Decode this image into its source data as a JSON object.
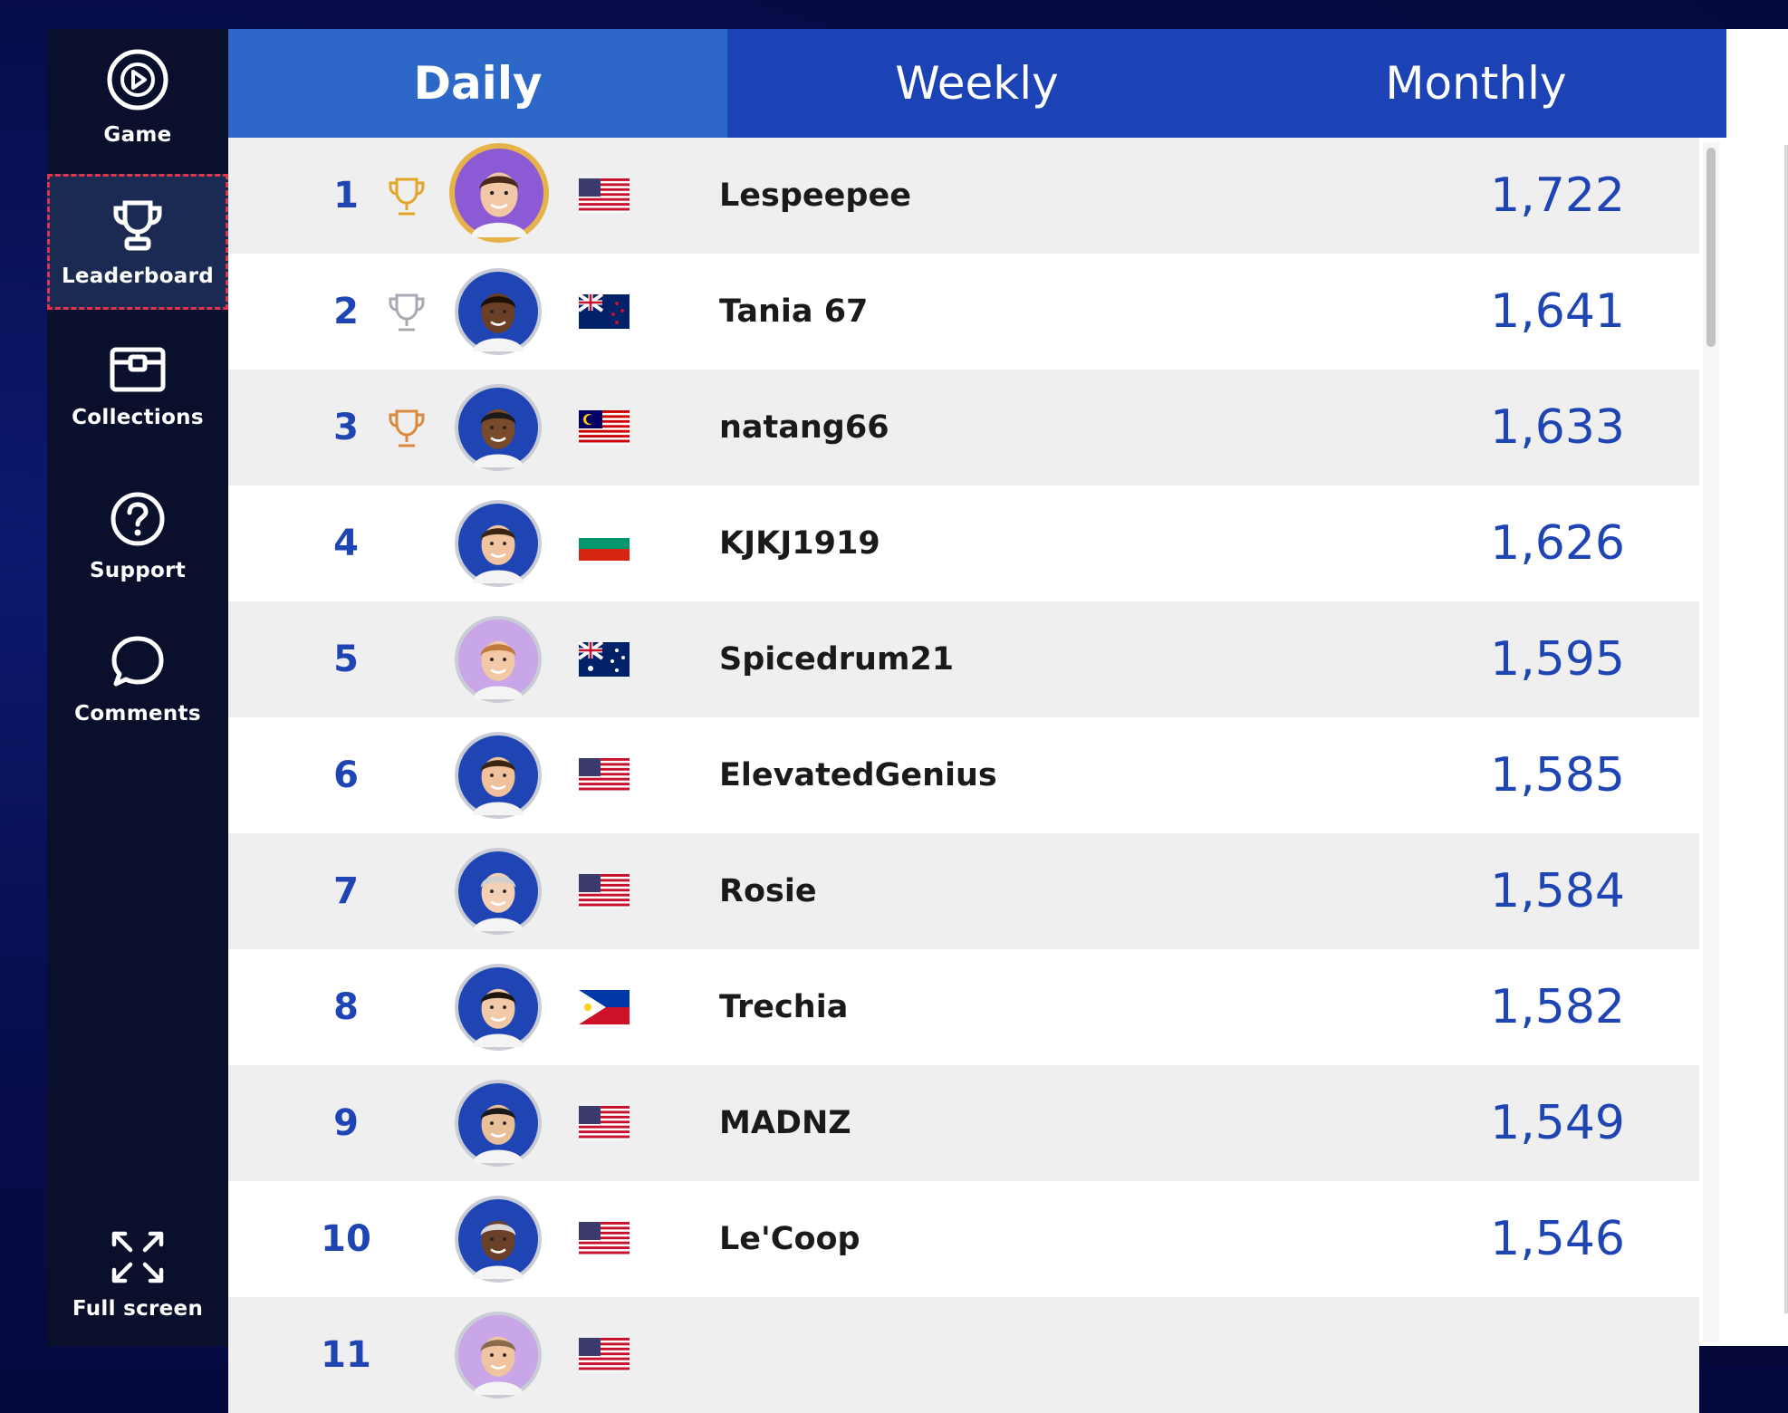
{
  "sidebar": {
    "items": [
      {
        "label": "Game",
        "icon": "play-circle-icon"
      },
      {
        "label": "Leaderboard",
        "icon": "trophy-icon",
        "active": true
      },
      {
        "label": "Collections",
        "icon": "chest-icon"
      },
      {
        "label": "Support",
        "icon": "help-circle-icon"
      },
      {
        "label": "Comments",
        "icon": "chat-bubble-icon"
      }
    ],
    "fullscreen": {
      "label": "Full screen",
      "icon": "expand-arrows-icon"
    }
  },
  "tabs": [
    {
      "label": "Daily",
      "active": true
    },
    {
      "label": "Weekly",
      "active": false
    },
    {
      "label": "Monthly",
      "active": false
    }
  ],
  "leaderboard": [
    {
      "rank": "1",
      "name": "Lespeepee",
      "score": "1,722",
      "flag": "us",
      "trophy": "gold"
    },
    {
      "rank": "2",
      "name": "Tania 67",
      "score": "1,641",
      "flag": "nz",
      "trophy": "silver"
    },
    {
      "rank": "3",
      "name": "natang66",
      "score": "1,633",
      "flag": "my",
      "trophy": "bronze"
    },
    {
      "rank": "4",
      "name": "KJKJ1919",
      "score": "1,626",
      "flag": "bg",
      "trophy": ""
    },
    {
      "rank": "5",
      "name": "Spicedrum21",
      "score": "1,595",
      "flag": "au",
      "trophy": ""
    },
    {
      "rank": "6",
      "name": "ElevatedGenius",
      "score": "1,585",
      "flag": "us",
      "trophy": ""
    },
    {
      "rank": "7",
      "name": "Rosie",
      "score": "1,584",
      "flag": "us",
      "trophy": ""
    },
    {
      "rank": "8",
      "name": "Trechia",
      "score": "1,582",
      "flag": "ph",
      "trophy": ""
    },
    {
      "rank": "9",
      "name": "MADNZ",
      "score": "1,549",
      "flag": "us",
      "trophy": ""
    },
    {
      "rank": "10",
      "name": "Le'Coop",
      "score": "1,546",
      "flag": "us",
      "trophy": ""
    },
    {
      "rank": "11",
      "name": "",
      "score": "",
      "flag": "us",
      "trophy": ""
    }
  ],
  "colors": {
    "accent": "#1f45b5",
    "tab_bar": "#1b43b5",
    "tab_active": "#2d68c8",
    "sidebar_bg": "#0a0f2c",
    "trophy_gold": "#e3a52a",
    "trophy_silver": "#a9a9b3",
    "trophy_bronze": "#d98a3e"
  }
}
